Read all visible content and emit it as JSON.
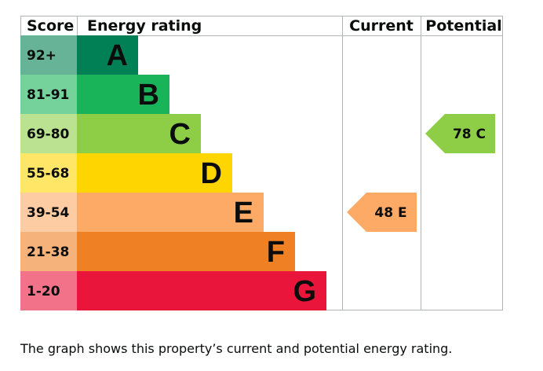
{
  "chart_data": {
    "type": "bar",
    "headers": {
      "score": "Score",
      "rating": "Energy rating",
      "current": "Current",
      "potential": "Potential"
    },
    "bands": [
      {
        "letter": "A",
        "score": "92+",
        "color": "#008054",
        "score_bg": "#66b398"
      },
      {
        "letter": "B",
        "score": "81-91",
        "color": "#19b459",
        "score_bg": "#75d29b"
      },
      {
        "letter": "C",
        "score": "69-80",
        "color": "#8dce46",
        "score_bg": "#bbe290"
      },
      {
        "letter": "D",
        "score": "55-68",
        "color": "#ffd500",
        "score_bg": "#ffe666"
      },
      {
        "letter": "E",
        "score": "39-54",
        "color": "#fcaa65",
        "score_bg": "#fdcca3"
      },
      {
        "letter": "F",
        "score": "21-38",
        "color": "#ef8023",
        "score_bg": "#f5b37b"
      },
      {
        "letter": "G",
        "score": "1-20",
        "color": "#e9153b",
        "score_bg": "#f27389"
      }
    ],
    "current": {
      "value": 48,
      "band": "E",
      "label": "48 E"
    },
    "potential": {
      "value": 78,
      "band": "C",
      "label": "78 C"
    }
  },
  "caption": "The graph shows this property’s current and potential energy rating."
}
